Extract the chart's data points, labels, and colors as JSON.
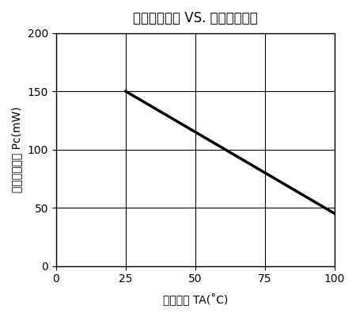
{
  "title": "受光許容損失 VS. 周囲温度の例",
  "ylabel": "受光許容損失 Pc(mW)",
  "xlabel_plain": "周囲温度 TA(˚C)",
  "line_x": [
    25,
    100
  ],
  "line_y": [
    150,
    45
  ],
  "xlim": [
    0,
    100
  ],
  "ylim": [
    0,
    200
  ],
  "xticks": [
    0,
    25,
    50,
    75,
    100
  ],
  "yticks": [
    0,
    50,
    100,
    150,
    200
  ],
  "line_color": "#000000",
  "line_width": 2.5,
  "background_color": "#ffffff",
  "grid_color": "#000000",
  "title_fontsize": 12,
  "label_fontsize": 10,
  "tick_fontsize": 10
}
